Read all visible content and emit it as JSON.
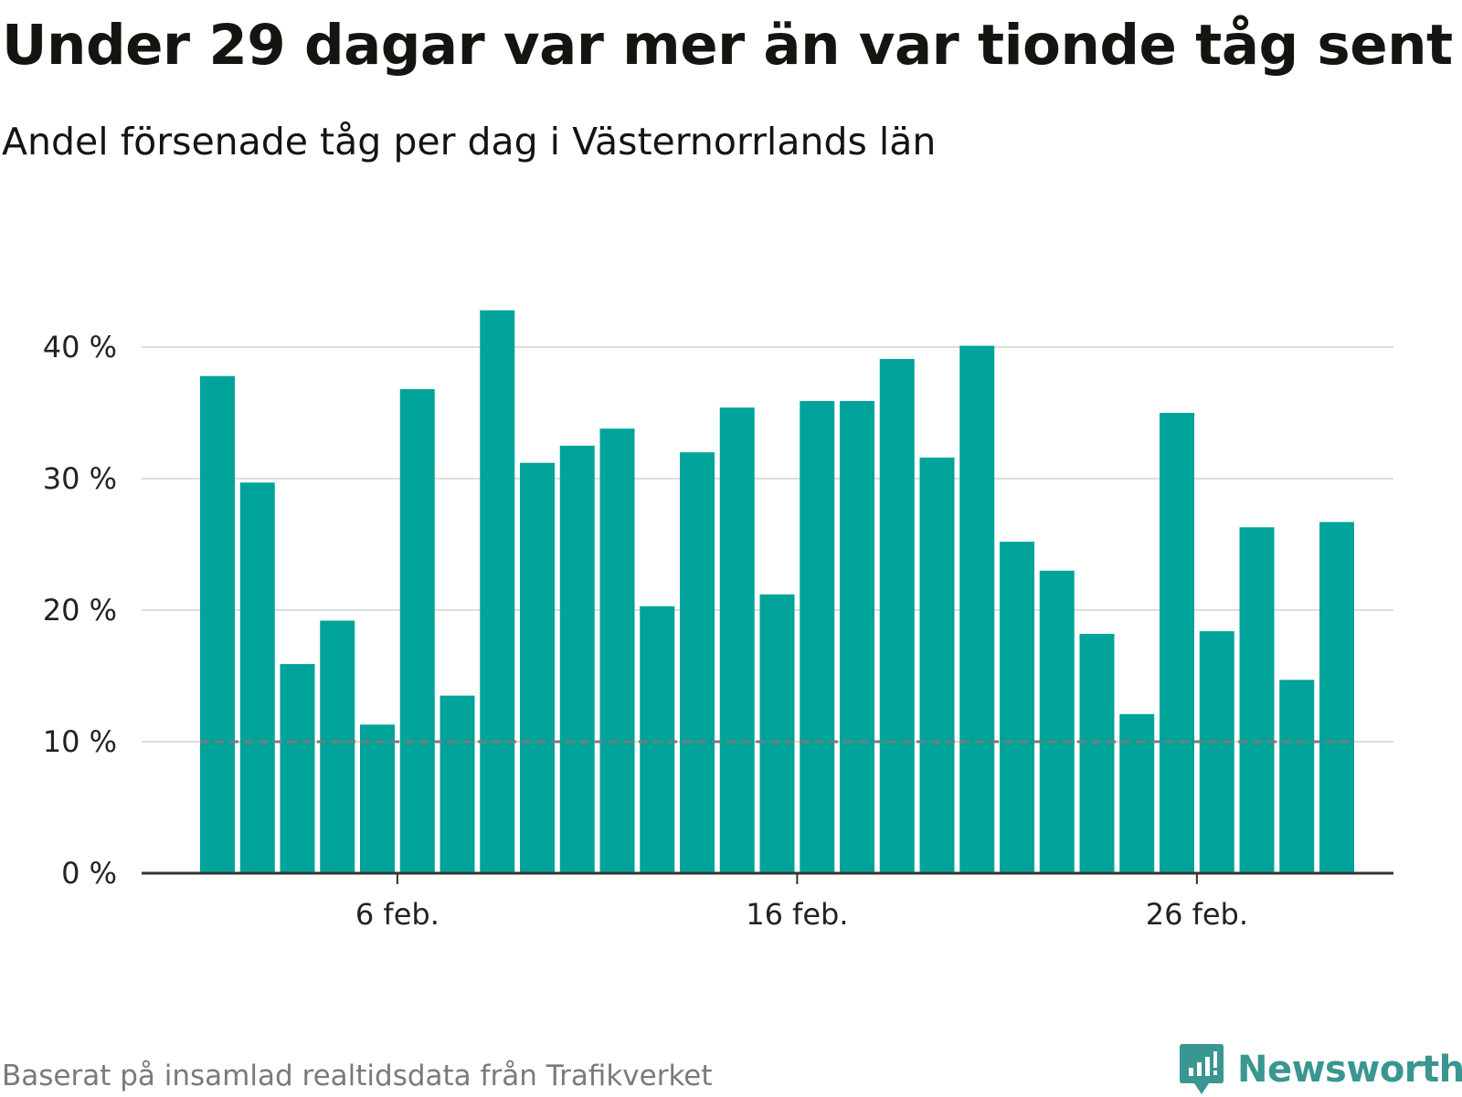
{
  "header": {
    "title": "Under 29 dagar var mer än var tionde tåg sent",
    "subtitle": "Andel försenade tåg per dag i Västernorrlands län"
  },
  "footer": {
    "source": "Baserat på insamlad realtidsdata från Trafikverket",
    "brand": "Newsworthy"
  },
  "colors": {
    "bar": "#00A39A",
    "grid": "#dddddd",
    "axis": "#333333",
    "threshold": "#7a7a7a",
    "brand": "#3a9690"
  },
  "chart_data": {
    "type": "bar",
    "categories": [
      "1 feb.",
      "2 feb.",
      "3 feb.",
      "4 feb.",
      "5 feb.",
      "6 feb.",
      "7 feb.",
      "8 feb.",
      "9 feb.",
      "10 feb.",
      "11 feb.",
      "12 feb.",
      "13 feb.",
      "14 feb.",
      "15 feb.",
      "16 feb.",
      "17 feb.",
      "18 feb.",
      "19 feb.",
      "20 feb.",
      "21 feb.",
      "22 feb.",
      "23 feb.",
      "24 feb.",
      "25 feb.",
      "26 feb.",
      "27 feb.",
      "28 feb.",
      "29 feb."
    ],
    "values": [
      37.8,
      29.7,
      15.9,
      19.2,
      11.3,
      36.8,
      13.5,
      42.8,
      31.2,
      32.5,
      33.8,
      20.3,
      32.0,
      35.4,
      21.2,
      35.9,
      35.9,
      39.1,
      31.6,
      40.1,
      25.2,
      23.0,
      18.2,
      12.1,
      35.0,
      18.4,
      26.3,
      14.7,
      26.7
    ],
    "ylim": [
      0,
      43
    ],
    "yticks": [
      0,
      10,
      20,
      30,
      40
    ],
    "ytick_labels": [
      "0 %",
      "10 %",
      "20 %",
      "30 %",
      "40 %"
    ],
    "xticks": [
      {
        "index": 5,
        "label": "6 feb."
      },
      {
        "index": 15,
        "label": "16 feb."
      },
      {
        "index": 25,
        "label": "26 feb."
      }
    ],
    "threshold": 10,
    "grid": true,
    "xlabel": "",
    "ylabel": ""
  }
}
